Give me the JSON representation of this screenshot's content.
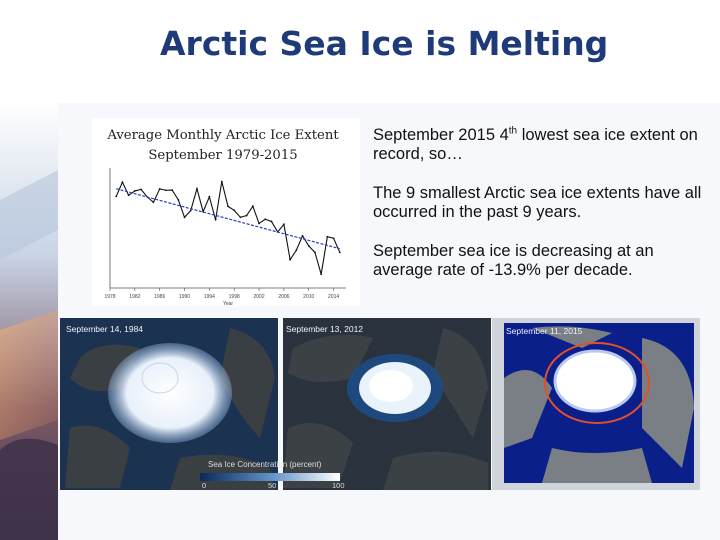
{
  "slide": {
    "title": "Arctic Sea Ice is Melting"
  },
  "chart_title": {
    "line1": "Average Monthly Arctic Ice Extent",
    "line2": "September 1979-2015"
  },
  "bullets": [
    {
      "before": "September 2015 4",
      "sup": "th",
      "after": " lowest sea ice extent on record, so…"
    },
    {
      "text": "The 9 smallest Arctic sea ice extents have all occurred in the past 9 years."
    },
    {
      "text": "September sea ice is decreasing at an average rate of -13.9% per decade."
    }
  ],
  "maps": {
    "map1_label": "September 14, 1984",
    "map2_label": "September 13, 2012",
    "map3_label": "September 11, 2015",
    "legend_title": "Sea Ice Concentration (percent)",
    "legend_ticks": [
      "0",
      "50",
      "100"
    ]
  },
  "chart_data": {
    "type": "line",
    "title": "",
    "xlabel": "Year",
    "ylabel": "",
    "x_ticks": [
      "1978",
      "1982",
      "1986",
      "1990",
      "1994",
      "1998",
      "2002",
      "2006",
      "2010",
      "2014"
    ],
    "xlim": [
      1978,
      2016
    ],
    "ylim": [
      3,
      8.5
    ],
    "series": [
      {
        "x": [
          1979,
          1980,
          1981,
          1982,
          1983,
          1984,
          1985,
          1986,
          1987,
          1988,
          1989,
          1990,
          1991,
          1992,
          1993,
          1994,
          1995,
          1996,
          1997,
          1998,
          1999,
          2000,
          2001,
          2002,
          2003,
          2004,
          2005,
          2006,
          2007,
          2008,
          2009,
          2010,
          2011,
          2012,
          2013,
          2014,
          2015
        ],
        "values": [
          7.2,
          7.85,
          7.25,
          7.45,
          7.52,
          7.17,
          6.93,
          7.54,
          7.48,
          7.49,
          7.04,
          6.24,
          6.55,
          7.55,
          6.5,
          7.18,
          6.13,
          7.88,
          6.74,
          6.56,
          6.24,
          6.32,
          6.75,
          5.96,
          6.15,
          6.05,
          5.57,
          5.92,
          4.3,
          4.73,
          5.39,
          4.93,
          4.63,
          3.63,
          5.35,
          5.28,
          4.63
        ]
      },
      {
        "name": "trend",
        "x": [
          1979,
          2015
        ],
        "values": [
          7.55,
          4.8
        ]
      }
    ],
    "grid": false,
    "legend": "none"
  }
}
